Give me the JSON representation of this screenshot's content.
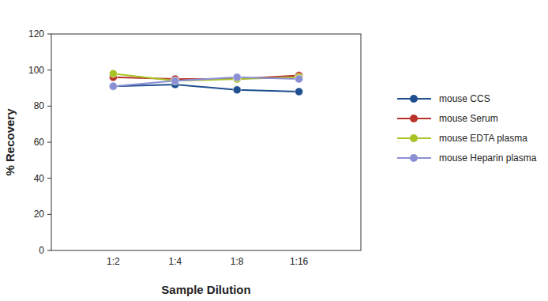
{
  "chart_data": {
    "type": "line",
    "x_label": "Sample Dilution",
    "y_label": "% Recovery",
    "categories": [
      "1:2",
      "1:4",
      "1:8",
      "1:16"
    ],
    "series": [
      {
        "name": "mouse CCS",
        "color": "#1f4f8e",
        "marker": "circle",
        "values": [
          91,
          92,
          89,
          88
        ]
      },
      {
        "name": "mouse Serum",
        "color": "#b8322a",
        "marker": "circle",
        "values": [
          96,
          95,
          95,
          97
        ]
      },
      {
        "name": "mouse EDTA plasma",
        "color": "#a9c326",
        "marker": "circle",
        "values": [
          98,
          94,
          95,
          96
        ]
      },
      {
        "name": "mouse Heparin plasma",
        "color": "#8b8fd4",
        "marker": "circle",
        "values": [
          91,
          94,
          96,
          95
        ]
      }
    ],
    "ylim": [
      0,
      120
    ],
    "yticks": [
      0,
      20,
      40,
      60,
      80,
      100,
      120
    ],
    "grid": false,
    "legend": "right"
  }
}
